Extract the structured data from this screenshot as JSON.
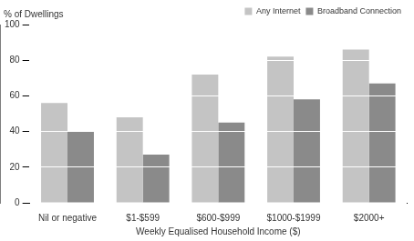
{
  "chart_data": {
    "type": "bar",
    "y_label": "% of Dwellings",
    "x_label": "Weekly Equalised Household Income ($)",
    "categories": [
      "Nil or negative",
      "$1-$599",
      "$600-$999",
      "$1000-$1999",
      "$2000+"
    ],
    "series": [
      {
        "name": "Any Internet",
        "color": "#c4c4c4",
        "values": [
          56,
          48,
          72,
          82,
          86
        ]
      },
      {
        "name": "Broadband Connection",
        "color": "#8a8a8a",
        "values": [
          40,
          27,
          45,
          58,
          67
        ]
      }
    ],
    "ylim": [
      0,
      100
    ],
    "yticks": [
      0,
      20,
      40,
      60,
      80,
      100
    ],
    "grid": true,
    "legend": "upper right"
  }
}
